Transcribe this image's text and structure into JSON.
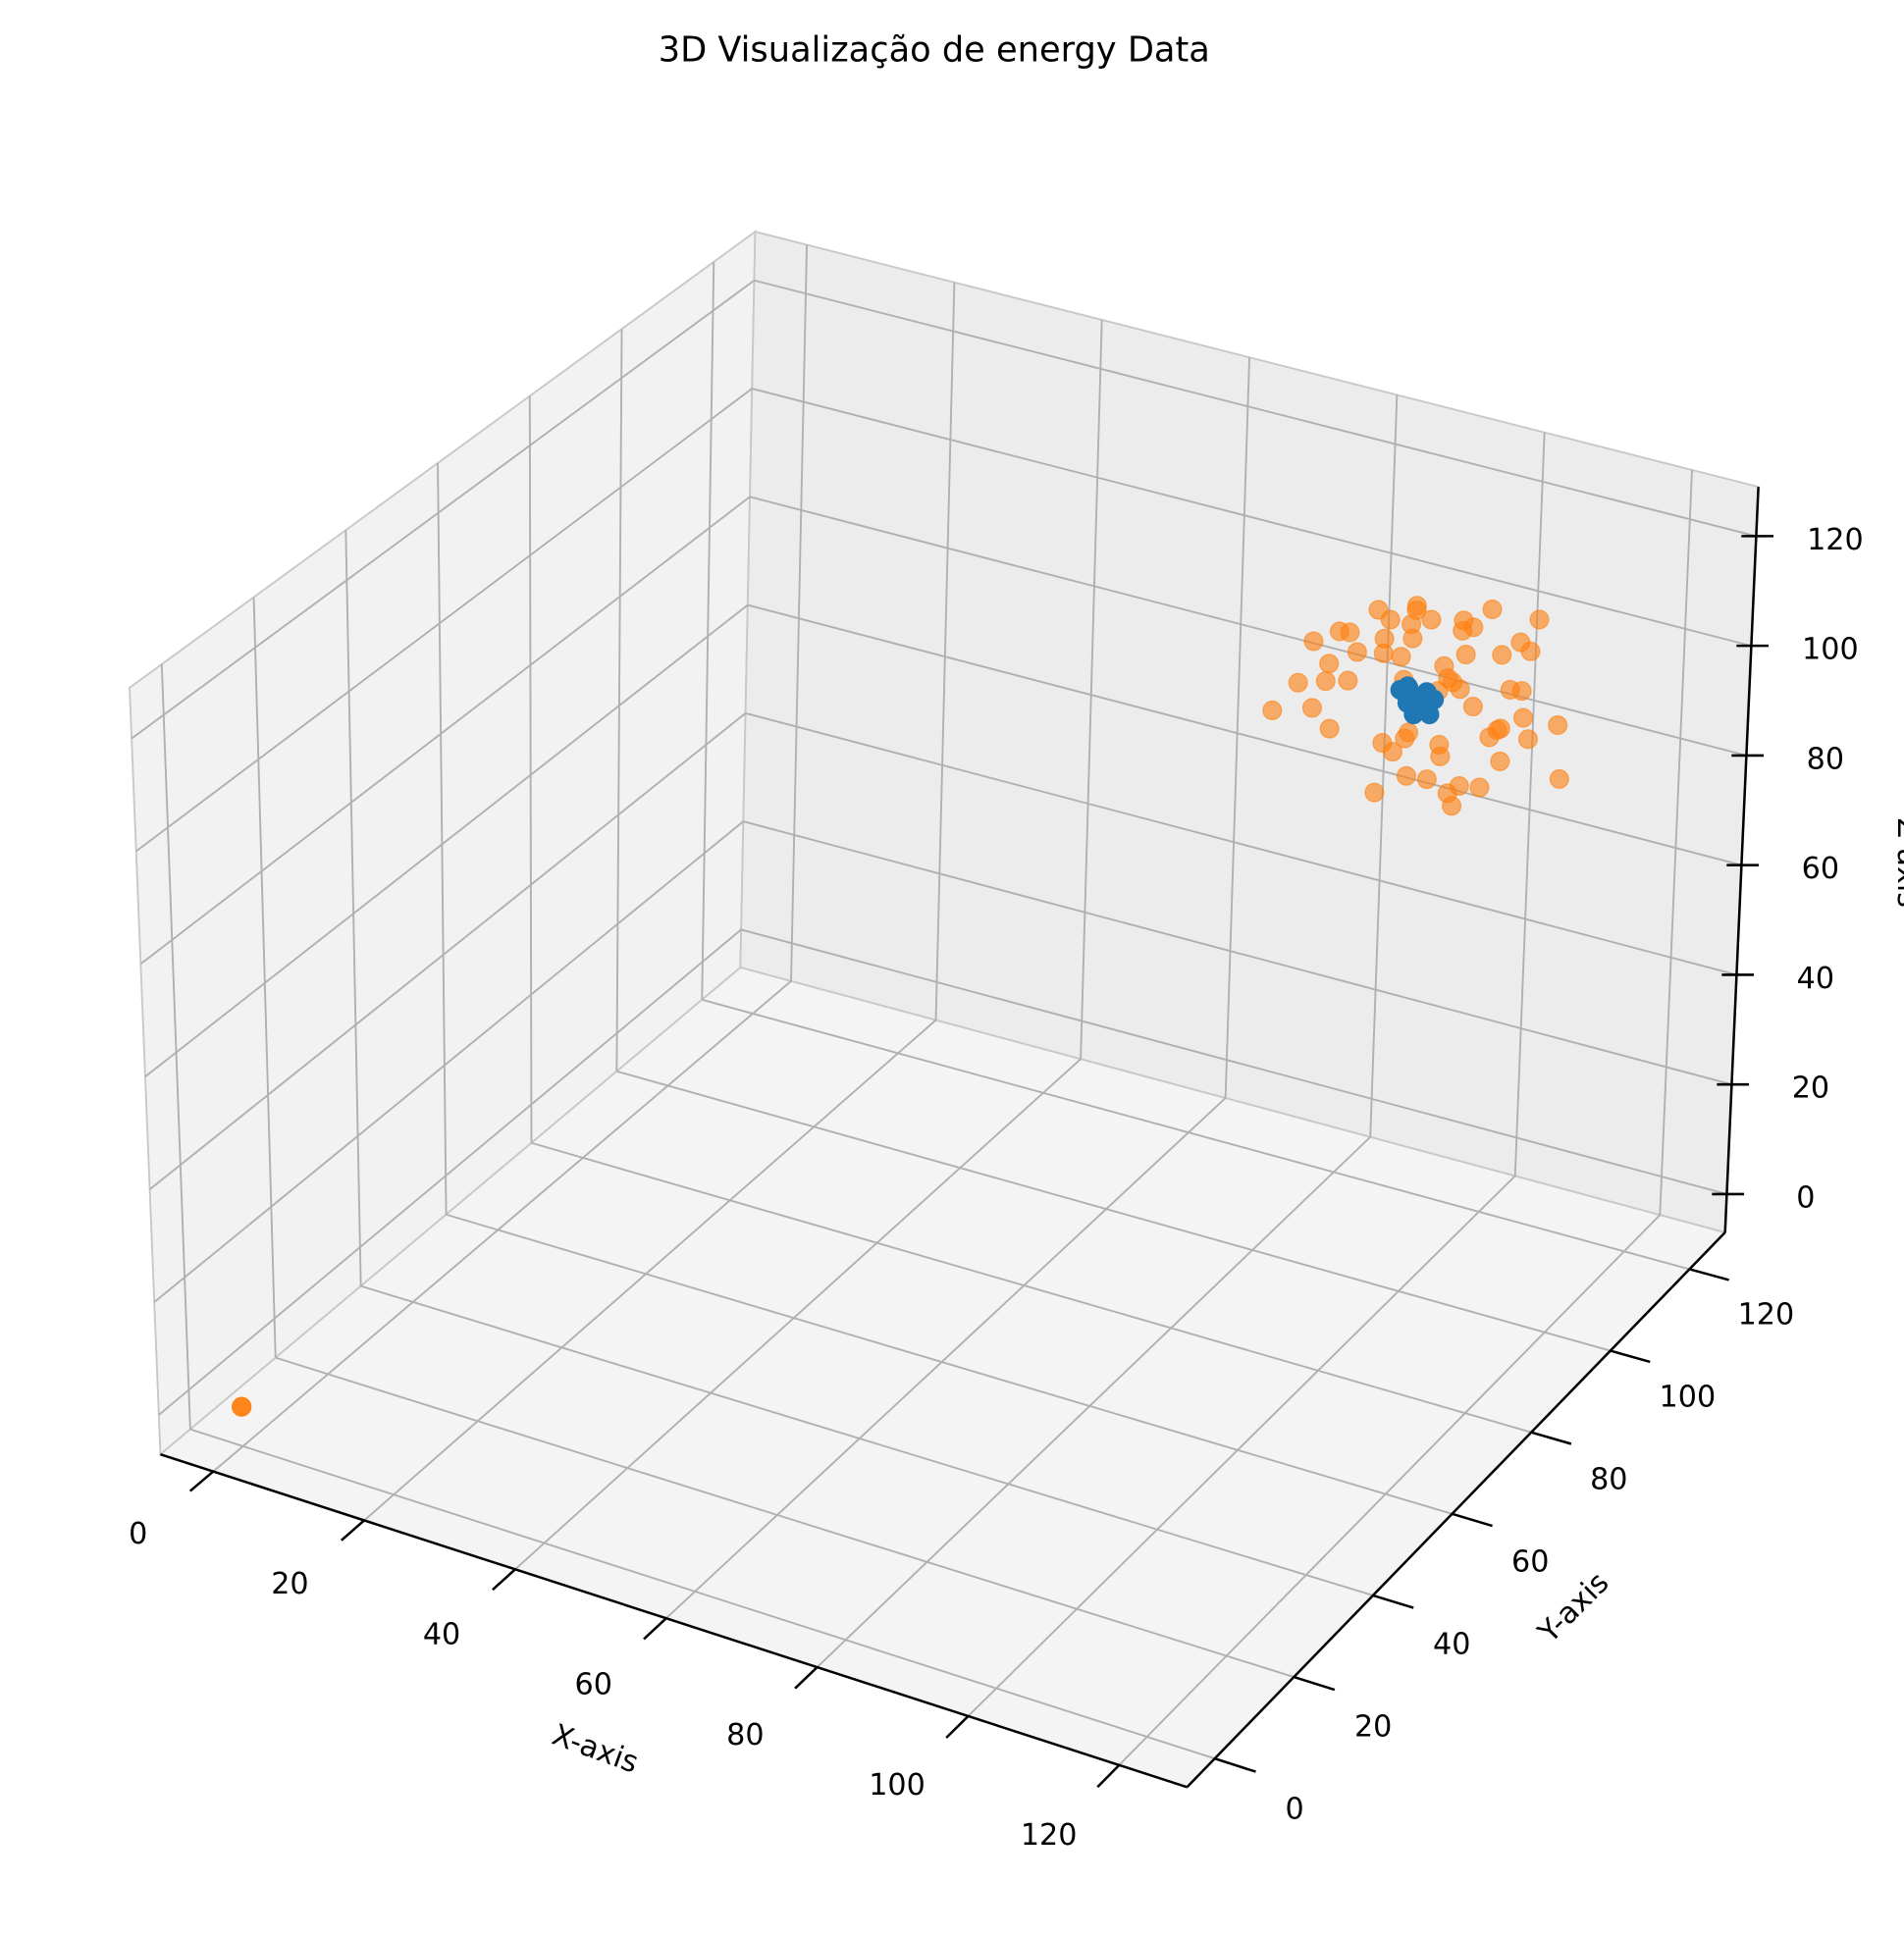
{
  "chart_data": {
    "type": "scatter3d",
    "title": "3D Visualização de energy Data",
    "xlabel": "X-axis",
    "ylabel": "Y-axis",
    "zlabel": "Z-axis",
    "xlim": [
      -7,
      129
    ],
    "ylim": [
      -7,
      129
    ],
    "zlim": [
      -7,
      129
    ],
    "xticks": [
      0,
      20,
      40,
      60,
      80,
      100,
      120
    ],
    "yticks": [
      0,
      20,
      40,
      60,
      80,
      100,
      120
    ],
    "zticks": [
      0,
      20,
      40,
      60,
      80,
      100,
      120
    ],
    "grid": true,
    "series": [
      {
        "color": "#ff7f0e",
        "alpha": 0.6,
        "x": [
          92,
          108,
          97,
          115,
          103,
          88,
          111,
          99,
          94,
          106,
          101,
          113,
          86,
          104,
          96,
          109,
          91,
          117,
          100,
          107,
          95,
          112,
          89,
          103,
          98,
          114,
          93,
          105,
          110,
          87,
          102,
          116,
          97,
          90,
          108,
          101,
          94,
          111,
          99,
          106,
          92,
          113,
          104,
          88,
          100,
          109,
          96,
          115,
          91,
          103,
          107,
          95,
          112,
          98,
          86,
          105,
          101,
          118,
          93,
          100,
          0,
          0,
          0
        ],
        "y": [
          105,
          92,
          111,
          98,
          87,
          103,
          115,
          94,
          108,
          100,
          89,
          106,
          97,
          113,
          91,
          102,
          116,
          95,
          109,
          86,
          104,
          99,
          112,
          93,
          107,
          101,
          88,
          114,
          96,
          103,
          110,
          92,
          99,
          117,
          94,
          105,
          90,
          101,
          108,
          97,
          113,
          86,
          104,
          100,
          111,
          95,
          107,
          89,
          102,
          98,
          115,
          93,
          106,
          100,
          91,
          109,
          96,
          103,
          88,
          112,
          0,
          0,
          0
        ],
        "z": [
          110,
          98,
          93,
          117,
          102,
          106,
          89,
          112,
          96,
          104,
          91,
          115,
          100,
          87,
          108,
          95,
          103,
          111,
          97,
          106,
          86,
          113,
          99,
          92,
          109,
          101,
          116,
          94,
          105,
          88,
          107,
          100,
          114,
          96,
          90,
          103,
          111,
          98,
          86,
          108,
          102,
          95,
          113,
          99,
          105,
          91,
          110,
          97,
          104,
          88,
          101,
          115,
          93,
          107,
          99,
          112,
          96,
          90,
          104,
          100,
          0,
          0,
          0
        ]
      },
      {
        "color": "#1f77b4",
        "alpha": 1,
        "x": [
          100,
          101,
          99,
          102,
          98,
          100,
          101,
          99,
          100,
          102,
          98,
          101,
          100,
          99,
          100
        ],
        "y": [
          100,
          99,
          101,
          100,
          102,
          98,
          101,
          100,
          99,
          101,
          100,
          98,
          102,
          100,
          99
        ],
        "z": [
          100,
          101,
          99,
          98,
          100,
          102,
          101,
          99,
          100,
          100,
          101,
          99,
          98,
          102,
          100
        ]
      }
    ]
  }
}
